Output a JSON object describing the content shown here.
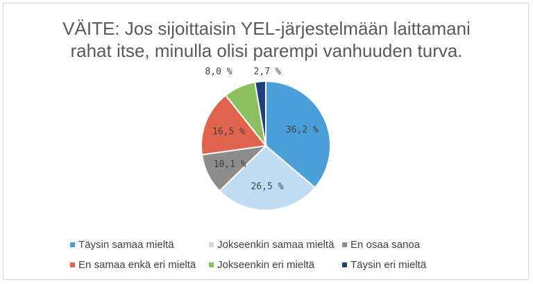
{
  "chart_data": {
    "type": "pie",
    "title": "VÄITE: Jos sijoittaisin YEL-järjestelmään laittamani rahat itse, minulla olisi parempi vanhuuden turva.",
    "title_lines": [
      "VÄITE: Jos sijoittaisin YEL-järjestelmään laittamani",
      "rahat itse, minulla olisi parempi vanhuuden turva."
    ],
    "legend_position": "bottom",
    "slices": [
      {
        "label": "Täysin samaa mieltä",
        "value": 36.2,
        "display": "36,2 %",
        "color": "#4a9fd8"
      },
      {
        "label": "Jokseenkin samaa mieltä",
        "value": 26.5,
        "display": "26,5 %",
        "color": "#bfdcf2"
      },
      {
        "label": "En osaa sanoa",
        "value": 10.1,
        "display": "10,1 %",
        "color": "#8c8c8c"
      },
      {
        "label": "En samaa enkä eri mieltä",
        "value": 16.5,
        "display": "16,5 %",
        "color": "#e0634e"
      },
      {
        "label": "Jokseenkin eri mieltä",
        "value": 8.0,
        "display": "8,0 %",
        "color": "#8cbf5e"
      },
      {
        "label": "Täysin eri mieltä",
        "value": 2.7,
        "display": "2,7 %",
        "color": "#1f3f7a"
      }
    ]
  }
}
